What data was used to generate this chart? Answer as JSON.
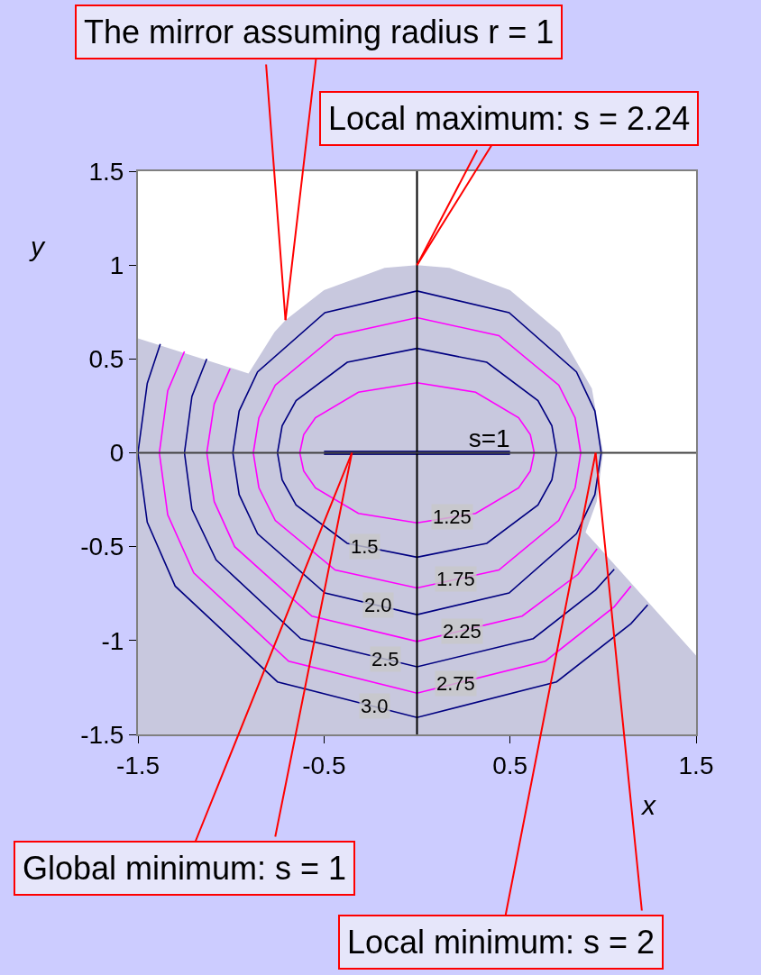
{
  "chart_data": {
    "type": "line",
    "xlabel": "x",
    "ylabel": "y",
    "xlim": [
      -1.5,
      1.5
    ],
    "xticks": [
      -1.5,
      -0.5,
      0.5,
      1.5
    ],
    "ylim": [
      -1.5,
      1.5
    ],
    "yticks": [
      -1.5,
      -1,
      -0.5,
      0,
      0.5,
      1,
      1.5
    ],
    "legend": false,
    "marker": "none",
    "line_style": "solid",
    "ref_lines": [
      {
        "axis": "x",
        "value": 0,
        "color": "#000000"
      },
      {
        "axis": "y",
        "value": 0,
        "color": "#404040"
      }
    ],
    "series": [
      {
        "type": "area",
        "color": "#c8c8de",
        "x": [
          -1.5,
          -0.906,
          -0.766,
          -0.707,
          -0.5,
          -0.174,
          0,
          0.174,
          0.5,
          0.766,
          0.94,
          1.0,
          0.966,
          0.906,
          1.5,
          1.5,
          -1.5,
          -1.5
        ],
        "values": [
          0.61,
          0.423,
          0.643,
          0.707,
          0.866,
          0.985,
          1.0,
          0.985,
          0.866,
          0.643,
          0.342,
          0,
          -0.259,
          -0.423,
          -1.08,
          -1.5,
          -1.5,
          0.61
        ]
      },
      {
        "color": "#ff00ff",
        "x": [
          -0.63,
          -0.609,
          -0.546,
          -0.315,
          0,
          0.315,
          0.546,
          0.609,
          0.63,
          null,
          -0.63,
          -0.609,
          -0.546,
          -0.315,
          0,
          0.315,
          0.546,
          0.609,
          0.63
        ],
        "values": [
          0,
          0.097,
          0.187,
          0.323,
          0.373,
          0.323,
          0.187,
          0.097,
          0,
          null,
          0,
          -0.097,
          -0.187,
          -0.323,
          -0.373,
          -0.323,
          -0.187,
          -0.097,
          0
        ]
      },
      {
        "color": "#000080",
        "x": [
          -0.75,
          -0.725,
          -0.65,
          -0.375,
          0,
          0.375,
          0.65,
          0.725,
          0.75,
          null,
          -0.75,
          -0.725,
          -0.65,
          -0.375,
          0,
          0.375,
          0.65,
          0.725,
          0.75
        ],
        "values": [
          0,
          0.144,
          0.278,
          0.482,
          0.556,
          0.482,
          0.278,
          0.144,
          0,
          null,
          0,
          -0.144,
          -0.278,
          -0.482,
          -0.556,
          -0.482,
          -0.278,
          -0.144,
          0
        ]
      },
      {
        "color": "#ff00ff",
        "x": [
          -0.88,
          -0.85,
          -0.762,
          -0.44,
          0,
          0.44,
          0.762,
          0.85,
          0.88,
          null,
          -0.88,
          -0.85,
          -0.762,
          -0.44,
          0,
          0.44,
          0.762,
          0.85,
          0.88
        ],
        "values": [
          0,
          0.186,
          0.36,
          0.624,
          0.72,
          0.624,
          0.36,
          0.186,
          0,
          null,
          0,
          -0.186,
          -0.36,
          -0.624,
          -0.72,
          -0.624,
          -0.36,
          -0.186,
          0
        ]
      },
      {
        "color": "#000080",
        "x": [
          -0.99,
          -0.956,
          -0.857,
          -0.495,
          0,
          0.495,
          0.857,
          0.956,
          0.99,
          null,
          -0.99,
          -0.956,
          -0.857,
          -0.495,
          0,
          0.495,
          0.857,
          0.956,
          0.99
        ],
        "values": [
          0,
          0.223,
          0.431,
          0.747,
          0.862,
          0.747,
          0.431,
          0.223,
          0,
          null,
          0,
          -0.223,
          -0.431,
          -0.747,
          -0.862,
          -0.747,
          -0.431,
          -0.223,
          0
        ]
      },
      {
        "color": "#ff00ff",
        "x": [
          -1.13,
          -1.09,
          -1.005,
          null,
          -1.13,
          -1.09,
          -0.98,
          -0.565,
          0,
          0.565,
          0.866,
          0.968
        ],
        "values": [
          0,
          0.26,
          0.448,
          null,
          0,
          -0.26,
          -0.5,
          -0.87,
          -1.005,
          -0.87,
          -0.647,
          -0.511
        ]
      },
      {
        "color": "#000080",
        "x": [
          -1.25,
          -1.21,
          -1.13,
          null,
          -1.25,
          -1.21,
          -1.08,
          -0.625,
          0,
          0.625,
          0.96,
          1.06
        ],
        "values": [
          0,
          0.3,
          0.5,
          null,
          0,
          -0.3,
          -0.57,
          -0.99,
          -1.14,
          -0.99,
          -0.73,
          -0.62
        ]
      },
      {
        "color": "#ff00ff",
        "x": [
          -1.385,
          -1.34,
          -1.25,
          null,
          -1.385,
          -1.34,
          -1.2,
          -0.69,
          0,
          0.69,
          1.06,
          1.15
        ],
        "values": [
          0,
          0.33,
          0.54,
          null,
          0,
          -0.33,
          -0.64,
          -1.11,
          -1.28,
          -1.11,
          -0.82,
          -0.71
        ]
      },
      {
        "color": "#000080",
        "x": [
          -1.5,
          -1.45,
          -1.38,
          null,
          -1.5,
          -1.45,
          -1.3,
          -0.75,
          0,
          0.75,
          1.15,
          1.24
        ],
        "values": [
          0,
          0.37,
          0.58,
          null,
          0,
          -0.37,
          -0.71,
          -1.22,
          -1.41,
          -1.22,
          -0.91,
          -0.81
        ]
      },
      {
        "name": "s=1",
        "color": "#1a1a80",
        "x": [
          -0.5,
          0.5
        ],
        "values": [
          0,
          0
        ]
      }
    ],
    "annotations": [
      {
        "text": "The mirror assuming radius r = 1",
        "x": -0.707,
        "y": 0.707
      },
      {
        "text": "Local maximum: s = 2.24",
        "x": 0,
        "y": 1
      },
      {
        "text": "Global minimum: s = 1",
        "x": -0.35,
        "y": 0
      },
      {
        "text": "Local minimum: s = 2",
        "x": 0.96,
        "y": 0
      },
      {
        "text": "1.25",
        "x": 0.19,
        "y": -0.34
      },
      {
        "text": "1.5",
        "x": -0.28,
        "y": -0.5
      },
      {
        "text": "1.75",
        "x": 0.21,
        "y": -0.67
      },
      {
        "text": "2.0",
        "x": -0.21,
        "y": -0.81
      },
      {
        "text": "2.25",
        "x": 0.24,
        "y": -0.95
      },
      {
        "text": "2.5",
        "x": -0.17,
        "y": -1.1
      },
      {
        "text": "2.75",
        "x": 0.21,
        "y": -1.23
      },
      {
        "text": "3.0",
        "x": -0.23,
        "y": -1.35
      }
    ]
  }
}
